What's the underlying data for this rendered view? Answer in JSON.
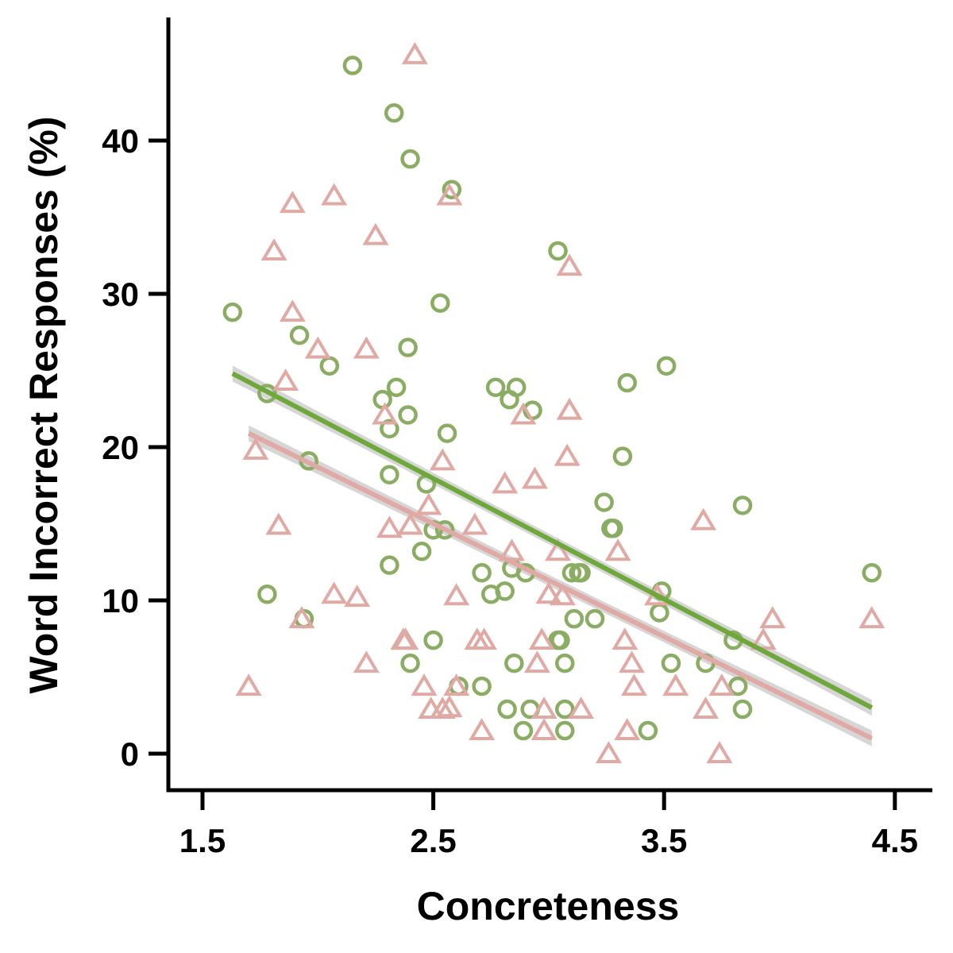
{
  "chart_data": {
    "type": "scatter",
    "title": "",
    "xlabel": "Concreteness",
    "ylabel": "Word Incorrect Responses (%)",
    "xlim": [
      1.36,
      4.65
    ],
    "ylim": [
      -2.5,
      48.0
    ],
    "xticks": [
      "1.5",
      "2.5",
      "3.5",
      "4.5"
    ],
    "yticks": [
      "0",
      "10",
      "20",
      "30",
      "40"
    ],
    "grid": false,
    "legend": "none",
    "series": [
      {
        "marker": "circle",
        "color": "#8aad63",
        "fit_color": "#6fa83a",
        "points": [
          [
            1.63,
            28.8
          ],
          [
            1.78,
            23.5
          ],
          [
            1.78,
            10.4
          ],
          [
            1.92,
            27.3
          ],
          [
            1.94,
            8.8
          ],
          [
            1.96,
            19.1
          ],
          [
            2.05,
            25.3
          ],
          [
            2.15,
            44.9
          ],
          [
            2.31,
            21.2
          ],
          [
            2.28,
            23.1
          ],
          [
            2.31,
            18.2
          ],
          [
            2.31,
            12.3
          ],
          [
            2.33,
            41.8
          ],
          [
            2.34,
            23.9
          ],
          [
            2.39,
            22.1
          ],
          [
            2.39,
            26.5
          ],
          [
            2.4,
            38.8
          ],
          [
            2.4,
            5.9
          ],
          [
            2.45,
            13.2
          ],
          [
            2.47,
            17.6
          ],
          [
            2.5,
            7.4
          ],
          [
            2.5,
            14.6
          ],
          [
            2.53,
            29.4
          ],
          [
            2.55,
            14.6
          ],
          [
            2.56,
            20.9
          ],
          [
            2.58,
            36.8
          ],
          [
            2.61,
            4.4
          ],
          [
            2.71,
            4.4
          ],
          [
            2.71,
            11.8
          ],
          [
            2.75,
            10.4
          ],
          [
            2.77,
            23.9
          ],
          [
            2.81,
            10.6
          ],
          [
            2.82,
            2.9
          ],
          [
            2.83,
            23.1
          ],
          [
            2.84,
            12.1
          ],
          [
            2.85,
            5.9
          ],
          [
            2.86,
            23.9
          ],
          [
            2.89,
            1.5
          ],
          [
            2.9,
            11.8
          ],
          [
            2.92,
            2.9
          ],
          [
            2.93,
            22.4
          ],
          [
            3.04,
            32.8
          ],
          [
            3.04,
            7.4
          ],
          [
            3.05,
            7.4
          ],
          [
            3.07,
            5.9
          ],
          [
            3.07,
            1.5
          ],
          [
            3.07,
            2.9
          ],
          [
            3.1,
            11.8
          ],
          [
            3.11,
            8.8
          ],
          [
            3.13,
            11.8
          ],
          [
            3.14,
            11.8
          ],
          [
            3.2,
            8.8
          ],
          [
            3.24,
            16.4
          ],
          [
            3.27,
            14.7
          ],
          [
            3.28,
            14.7
          ],
          [
            3.32,
            19.4
          ],
          [
            3.34,
            24.2
          ],
          [
            3.43,
            1.5
          ],
          [
            3.48,
            9.2
          ],
          [
            3.49,
            10.6
          ],
          [
            3.51,
            25.3
          ],
          [
            3.53,
            5.9
          ],
          [
            3.68,
            5.9
          ],
          [
            3.8,
            7.4
          ],
          [
            3.82,
            4.4
          ],
          [
            3.84,
            2.9
          ],
          [
            3.84,
            16.2
          ],
          [
            4.4,
            11.8
          ]
        ],
        "fit": {
          "x": [
            1.63,
            4.4
          ],
          "y": [
            24.8,
            3.0
          ]
        }
      },
      {
        "marker": "triangle",
        "color": "#e0a9a4",
        "fit_color": "#e0a9a4",
        "points": [
          [
            1.7,
            4.4
          ],
          [
            1.73,
            19.8
          ],
          [
            1.81,
            32.8
          ],
          [
            1.83,
            14.9
          ],
          [
            1.86,
            24.3
          ],
          [
            1.89,
            35.9
          ],
          [
            1.89,
            28.8
          ],
          [
            1.93,
            8.8
          ],
          [
            2.0,
            26.4
          ],
          [
            2.07,
            36.4
          ],
          [
            2.07,
            10.4
          ],
          [
            2.17,
            10.2
          ],
          [
            2.21,
            26.4
          ],
          [
            2.21,
            5.9
          ],
          [
            2.25,
            33.8
          ],
          [
            2.29,
            22.1
          ],
          [
            2.31,
            14.7
          ],
          [
            2.37,
            7.4
          ],
          [
            2.38,
            7.4
          ],
          [
            2.4,
            14.9
          ],
          [
            2.42,
            45.6
          ],
          [
            2.46,
            4.4
          ],
          [
            2.48,
            16.2
          ],
          [
            2.49,
            2.9
          ],
          [
            2.54,
            2.9
          ],
          [
            2.54,
            19.1
          ],
          [
            2.57,
            3.0
          ],
          [
            2.57,
            36.4
          ],
          [
            2.6,
            4.4
          ],
          [
            2.6,
            10.3
          ],
          [
            2.68,
            14.9
          ],
          [
            2.69,
            7.4
          ],
          [
            2.71,
            1.5
          ],
          [
            2.72,
            7.4
          ],
          [
            2.81,
            17.6
          ],
          [
            2.84,
            13.2
          ],
          [
            2.89,
            22.1
          ],
          [
            2.94,
            17.9
          ],
          [
            2.95,
            5.9
          ],
          [
            2.97,
            7.4
          ],
          [
            2.98,
            2.9
          ],
          [
            2.98,
            1.5
          ],
          [
            3.0,
            10.4
          ],
          [
            3.04,
            13.2
          ],
          [
            3.06,
            10.3
          ],
          [
            3.08,
            19.4
          ],
          [
            3.09,
            22.4
          ],
          [
            3.09,
            31.8
          ],
          [
            3.14,
            2.9
          ],
          [
            3.26,
            0.0
          ],
          [
            3.3,
            13.2
          ],
          [
            3.33,
            7.4
          ],
          [
            3.34,
            1.5
          ],
          [
            3.36,
            5.9
          ],
          [
            3.37,
            4.4
          ],
          [
            3.47,
            10.3
          ],
          [
            3.55,
            4.4
          ],
          [
            3.67,
            15.2
          ],
          [
            3.68,
            2.9
          ],
          [
            3.74,
            0.0
          ],
          [
            3.75,
            4.4
          ],
          [
            3.93,
            7.4
          ],
          [
            3.97,
            8.8
          ],
          [
            4.4,
            8.8
          ]
        ],
        "fit": {
          "x": [
            1.7,
            4.4
          ],
          "y": [
            20.9,
            1.0
          ]
        }
      }
    ]
  }
}
